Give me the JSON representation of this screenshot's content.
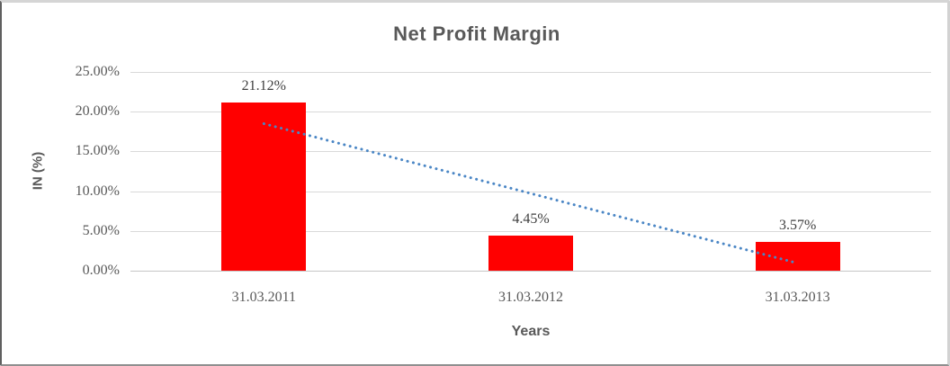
{
  "window": {
    "background": "#ffffff",
    "frame_border_color": "#9e9e9e"
  },
  "chart_data": {
    "type": "bar",
    "title": "Net Profit Margin",
    "xlabel": "Years",
    "ylabel": "IN (%)",
    "categories": [
      "31.03.2011",
      "31.03.2012",
      "31.03.2013"
    ],
    "series": [
      {
        "name": "Net Profit Margin",
        "values": [
          21.12,
          4.45,
          3.57
        ]
      }
    ],
    "data_labels": [
      "21.12%",
      "4.45%",
      "3.57%"
    ],
    "y_ticks": [
      {
        "label": "25.00%",
        "value": 25
      },
      {
        "label": "20.00%",
        "value": 20
      },
      {
        "label": "15.00%",
        "value": 15
      },
      {
        "label": "10.00%",
        "value": 10
      },
      {
        "label": "5.00%",
        "value": 5
      },
      {
        "label": "0.00%",
        "value": 0
      }
    ],
    "ylim": [
      0,
      25
    ],
    "grid": true,
    "legend_position": "none",
    "bar_color": "#ff0000",
    "gridline_color": "#d9d9d9",
    "text_color": "#595959",
    "data_label_color": "#3f3f3f",
    "trendline": {
      "type": "linear",
      "style": "dotted",
      "color": "#4a86c5",
      "start_value": 18.49,
      "end_value": 0.94
    }
  }
}
